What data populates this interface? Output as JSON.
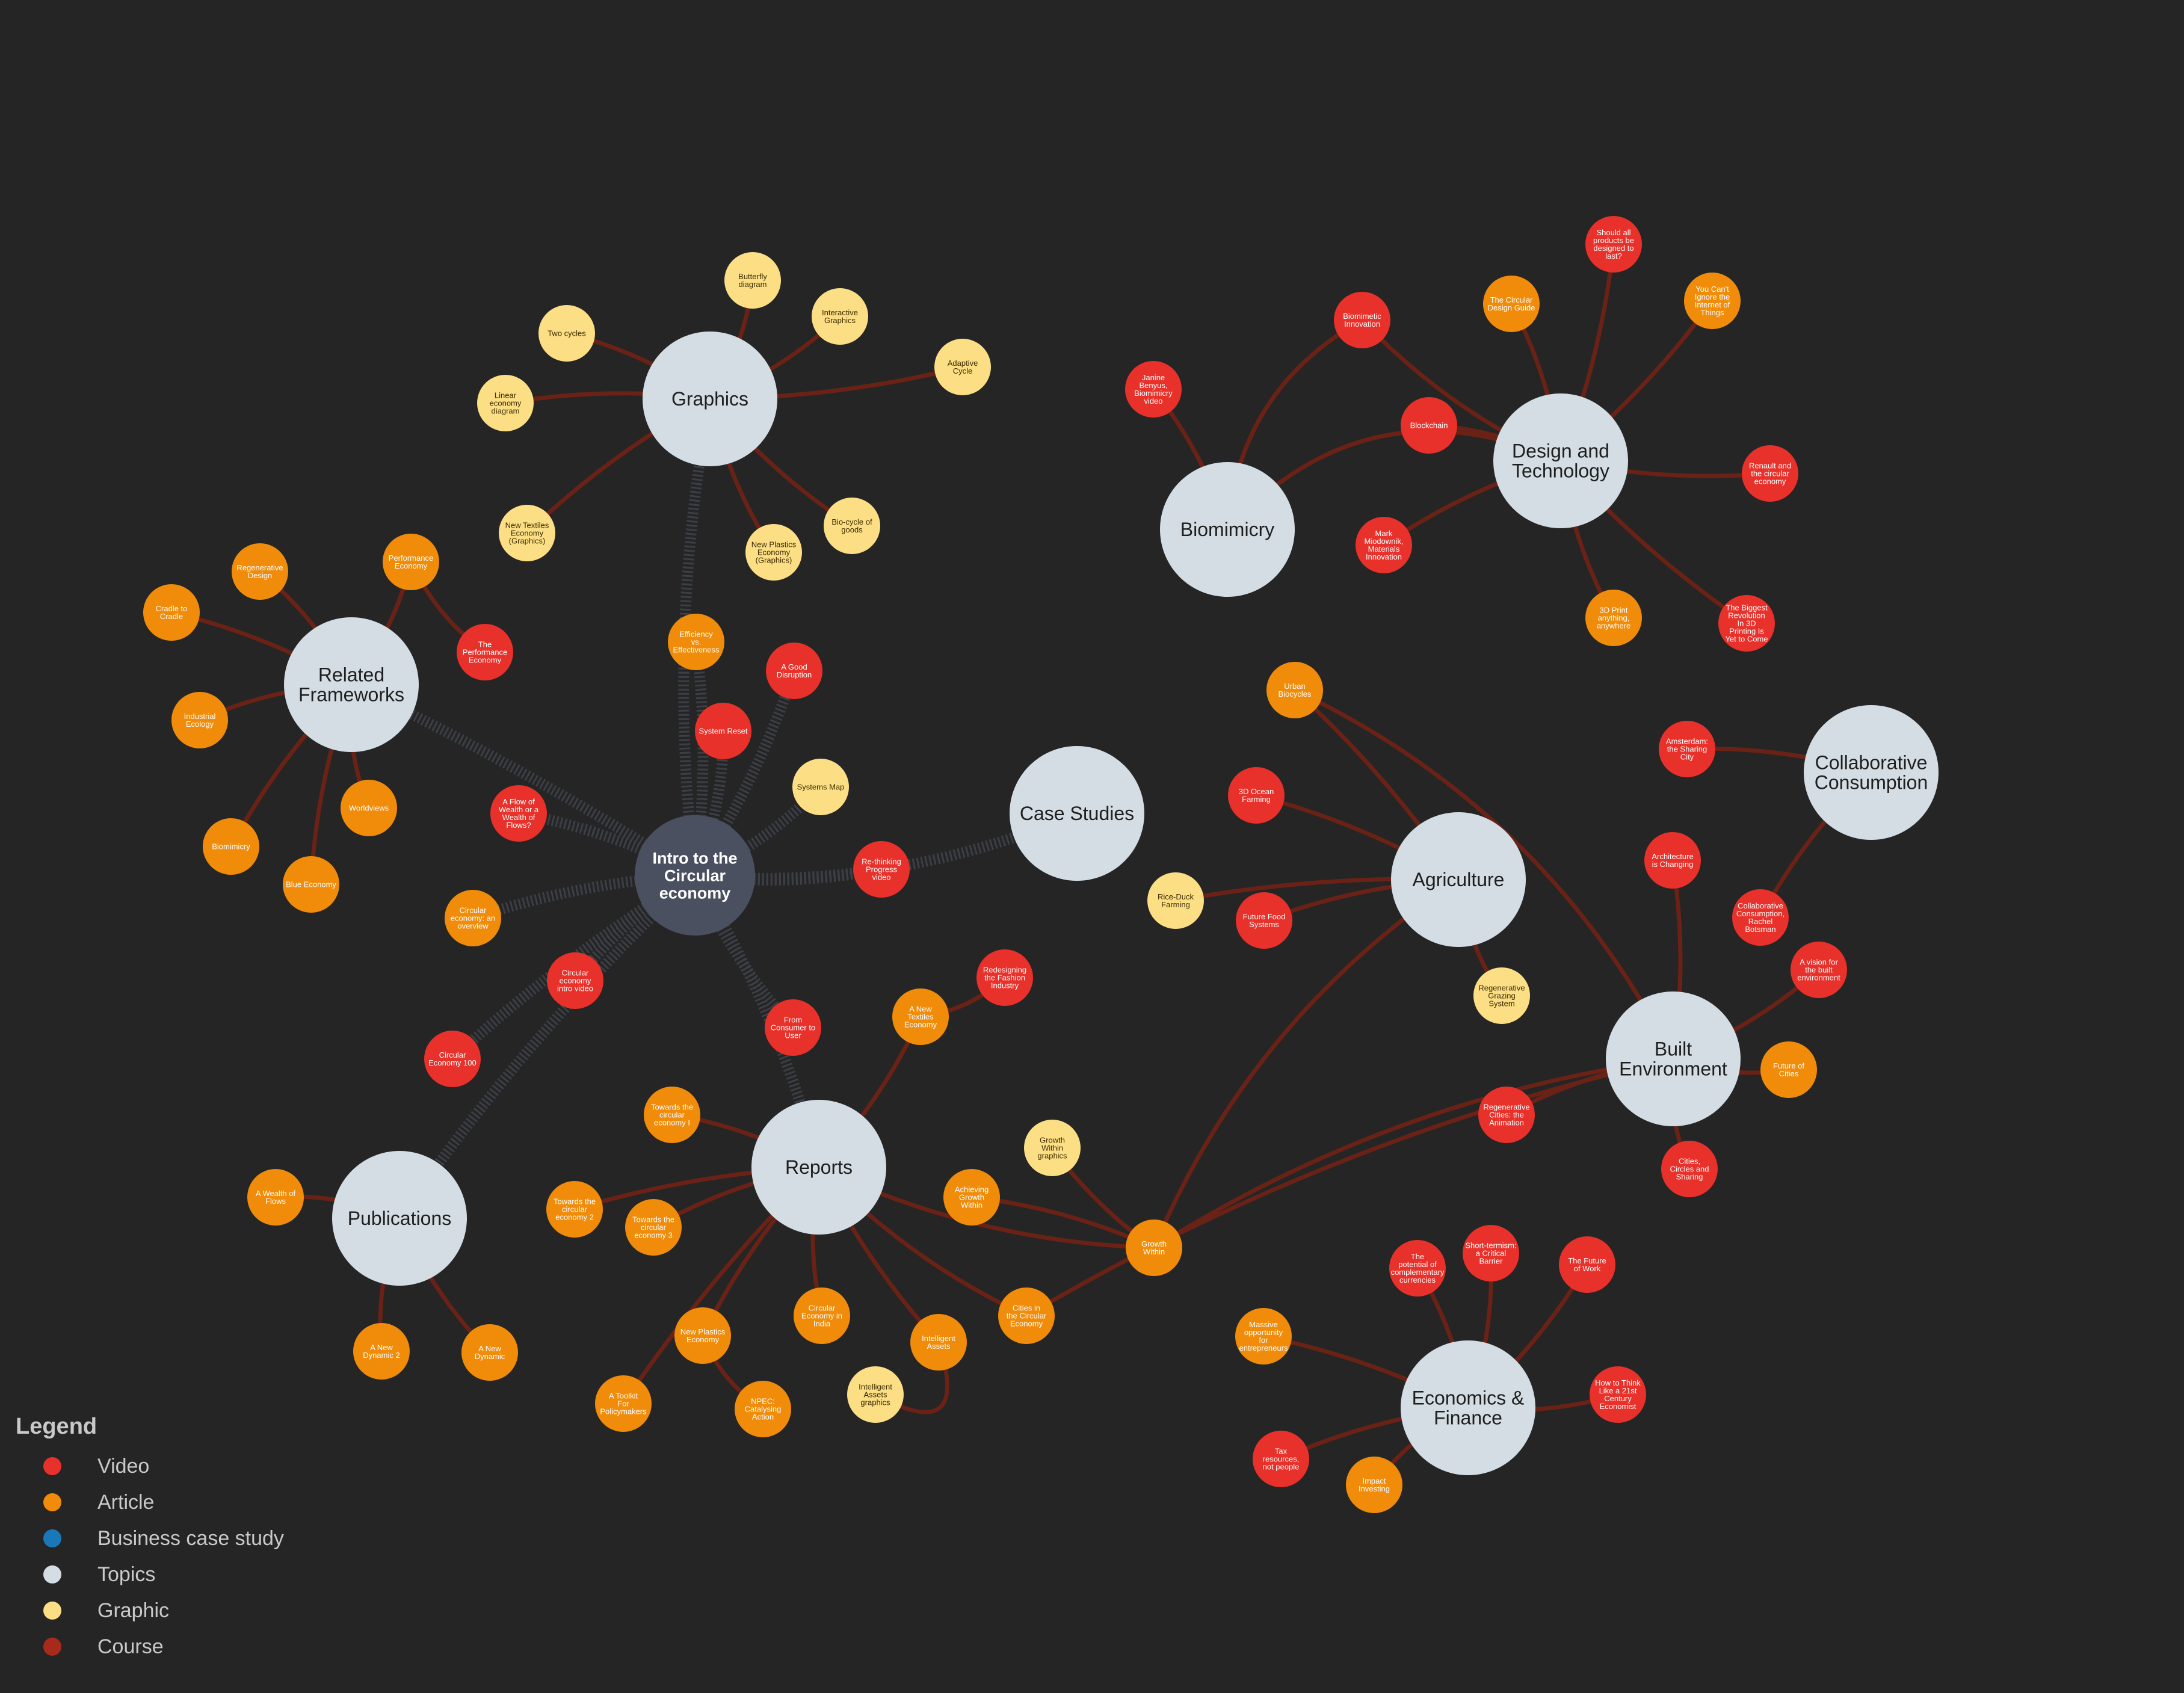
{
  "colors": {
    "background": "#252525",
    "video": "#e8312a",
    "article": "#f08c0a",
    "business_case_study": "#1a78b8",
    "topics": "#d3dde3",
    "graphic": "#fcde84",
    "course": "#a82a1a",
    "hub": "#4a5060",
    "link_course": "#6a2216",
    "link_hub": "#3c3f47"
  },
  "legend": {
    "title": "Legend",
    "items": [
      {
        "label": "Video",
        "type": "video"
      },
      {
        "label": "Article",
        "type": "article"
      },
      {
        "label": "Business case study",
        "type": "business_case_study"
      },
      {
        "label": "Topics",
        "type": "topics"
      },
      {
        "label": "Graphic",
        "type": "graphic"
      },
      {
        "label": "Course",
        "type": "course"
      }
    ]
  },
  "nodes": [
    {
      "id": "intro",
      "label": "Intro to the Circular economy",
      "type": "hub"
    },
    {
      "id": "graphics",
      "label": "Graphics",
      "type": "topics"
    },
    {
      "id": "related",
      "label": "Related Frameworks",
      "type": "topics"
    },
    {
      "id": "case",
      "label": "Case Studies",
      "type": "topics"
    },
    {
      "id": "publications",
      "label": "Publications",
      "type": "topics"
    },
    {
      "id": "reports",
      "label": "Reports",
      "type": "topics"
    },
    {
      "id": "biomimicry",
      "label": "Biomimicry",
      "type": "topics"
    },
    {
      "id": "design",
      "label": "Design and Technology",
      "type": "topics"
    },
    {
      "id": "agriculture",
      "label": "Agriculture",
      "type": "topics"
    },
    {
      "id": "collab",
      "label": "Collaborative Consumption",
      "type": "topics"
    },
    {
      "id": "built",
      "label": "Built Environment",
      "type": "topics"
    },
    {
      "id": "econ",
      "label": "Economics & Finance",
      "type": "topics"
    },
    {
      "id": "butterfly",
      "label": "Butterfly diagram",
      "type": "graphic"
    },
    {
      "id": "twocycles",
      "label": "Two cycles",
      "type": "graphic"
    },
    {
      "id": "interactive",
      "label": "Interactive Graphics",
      "type": "graphic"
    },
    {
      "id": "adaptive",
      "label": "Adaptive Cycle",
      "type": "graphic"
    },
    {
      "id": "linear",
      "label": "Linear economy diagram",
      "type": "graphic"
    },
    {
      "id": "ntg",
      "label": "New Textiles Economy (Graphics)",
      "type": "graphic"
    },
    {
      "id": "npg",
      "label": "New Plastics Economy (Graphics)",
      "type": "graphic"
    },
    {
      "id": "biocycle",
      "label": "Bio-cycle of goods",
      "type": "graphic"
    },
    {
      "id": "regen",
      "label": "Regenerative Design",
      "type": "article"
    },
    {
      "id": "perfecon",
      "label": "Performance Economy",
      "type": "article"
    },
    {
      "id": "cradle",
      "label": "Cradle to Cradle",
      "type": "article"
    },
    {
      "id": "theperf",
      "label": "The Performance Economy",
      "type": "video"
    },
    {
      "id": "indeco",
      "label": "Industrial Ecology",
      "type": "article"
    },
    {
      "id": "worldviews",
      "label": "Worldviews",
      "type": "article"
    },
    {
      "id": "biomim_a",
      "label": "Biomimicry",
      "type": "article"
    },
    {
      "id": "blueeco",
      "label": "Blue Economy",
      "type": "article"
    },
    {
      "id": "efficiency",
      "label": "Efficiency vs. Effectiveness",
      "type": "article"
    },
    {
      "id": "gooddis",
      "label": "A Good Disruption",
      "type": "video"
    },
    {
      "id": "sysreset",
      "label": "System Reset",
      "type": "video"
    },
    {
      "id": "sysmap",
      "label": "Systems Map",
      "type": "graphic"
    },
    {
      "id": "flowwealth",
      "label": "A Flow of Wealth or a Wealth of Flows?",
      "type": "video"
    },
    {
      "id": "rethinking",
      "label": "Re-thinking Progress video",
      "type": "video"
    },
    {
      "id": "ceoverview",
      "label": "Circular economy: an overview",
      "type": "article"
    },
    {
      "id": "ceintro",
      "label": "Circular economy intro video",
      "type": "video"
    },
    {
      "id": "fromcons",
      "label": "From Consumer to User",
      "type": "video"
    },
    {
      "id": "ce100",
      "label": "Circular Economy 100",
      "type": "video"
    },
    {
      "id": "awealth",
      "label": "A Wealth of Flows",
      "type": "article"
    },
    {
      "id": "anewdyn",
      "label": "A New Dynamic 2",
      "type": "article"
    },
    {
      "id": "anewdyn1",
      "label": "A New Dynamic",
      "type": "article"
    },
    {
      "id": "newtext",
      "label": "A New Textiles Economy",
      "type": "article"
    },
    {
      "id": "redesign",
      "label": "Redesigning the Fashion Industry",
      "type": "video"
    },
    {
      "id": "towards1",
      "label": "Towards the circular economy I",
      "type": "article"
    },
    {
      "id": "towards2",
      "label": "Towards the circular economy 2",
      "type": "article"
    },
    {
      "id": "towards3",
      "label": "Towards the circular economy 3",
      "type": "article"
    },
    {
      "id": "achieving",
      "label": "Achieving Growth Within",
      "type": "article"
    },
    {
      "id": "gwgraphics",
      "label": "Growth Within graphics",
      "type": "graphic"
    },
    {
      "id": "growthwithin",
      "label": "Growth Within",
      "type": "article"
    },
    {
      "id": "newplastics",
      "label": "New Plastics Economy",
      "type": "article"
    },
    {
      "id": "ceindia",
      "label": "Circular Economy in India",
      "type": "article"
    },
    {
      "id": "intassets",
      "label": "Intelligent Assets",
      "type": "article"
    },
    {
      "id": "citiesce",
      "label": "Cities in the Circular Economy",
      "type": "article"
    },
    {
      "id": "toolkit",
      "label": "A Toolkit For Policymakers",
      "type": "article"
    },
    {
      "id": "npec",
      "label": "NPEC: Catalysing Action",
      "type": "article"
    },
    {
      "id": "iagraphics",
      "label": "Intelligent Assets graphics",
      "type": "graphic"
    },
    {
      "id": "biomiminn",
      "label": "Biomimetic Innovation",
      "type": "video"
    },
    {
      "id": "janine",
      "label": "Janine Benyus, Biomimicry video",
      "type": "video"
    },
    {
      "id": "blockchain",
      "label": "Blockchain",
      "type": "video"
    },
    {
      "id": "markm",
      "label": "Mark Miodownik, Materials Innovation",
      "type": "video"
    },
    {
      "id": "circdesign",
      "label": "The Circular Design Guide",
      "type": "article"
    },
    {
      "id": "shouldall",
      "label": "Should all products be designed to last?",
      "type": "video"
    },
    {
      "id": "ignore",
      "label": "You Can't Ignore the Internet of Things",
      "type": "article"
    },
    {
      "id": "renault",
      "label": "Renault and the circular economy",
      "type": "video"
    },
    {
      "id": "print3d",
      "label": "3D Print anything, anywhere",
      "type": "article"
    },
    {
      "id": "biggest",
      "label": "The Biggest Revolution In 3D Printing Is Yet to Come",
      "type": "video"
    },
    {
      "id": "urbanbio",
      "label": "Urban Biocycles",
      "type": "article"
    },
    {
      "id": "ocean3d",
      "label": "3D Ocean Farming",
      "type": "video"
    },
    {
      "id": "riceduck",
      "label": "Rice-Duck Farming",
      "type": "graphic"
    },
    {
      "id": "futurefood",
      "label": "Future Food Systems",
      "type": "video"
    },
    {
      "id": "regengraz",
      "label": "Regenerative Grazing System",
      "type": "graphic"
    },
    {
      "id": "amsterdam",
      "label": "Amsterdam: the Sharing City",
      "type": "video"
    },
    {
      "id": "collabrachel",
      "label": "Collaborative Consumption, Rachel Botsman",
      "type": "video"
    },
    {
      "id": "archchanging",
      "label": "Architecture is Changing",
      "type": "video"
    },
    {
      "id": "avision",
      "label": "A vision for the built environment",
      "type": "video"
    },
    {
      "id": "futcities",
      "label": "Future of Cities",
      "type": "article"
    },
    {
      "id": "regencities",
      "label": "Regenerative Cities: the Animation",
      "type": "video"
    },
    {
      "id": "citiescircles",
      "label": "Cities, Circles and Sharing",
      "type": "video"
    },
    {
      "id": "potential",
      "label": "The potential of complementary currencies",
      "type": "video"
    },
    {
      "id": "shortterm",
      "label": "Short-termism: a Critical Barrier",
      "type": "video"
    },
    {
      "id": "futurework",
      "label": "The Future of Work",
      "type": "video"
    },
    {
      "id": "massive",
      "label": "Massive opportunity for entrepreneurs",
      "type": "article"
    },
    {
      "id": "howtothink",
      "label": "How to Think Like a 21st Century Economist",
      "type": "video"
    },
    {
      "id": "taxres",
      "label": "Tax resources, not people",
      "type": "video"
    },
    {
      "id": "impact",
      "label": "Impact Investing",
      "type": "article"
    }
  ],
  "links": [
    {
      "from": "intro",
      "to": "graphics",
      "kind": "hub"
    },
    {
      "from": "intro",
      "to": "related",
      "kind": "hub"
    },
    {
      "from": "intro",
      "to": "case",
      "kind": "hub"
    },
    {
      "from": "intro",
      "to": "publications",
      "kind": "hub"
    },
    {
      "from": "intro",
      "to": "reports",
      "kind": "hub"
    },
    {
      "from": "intro",
      "to": "efficiency",
      "kind": "hub"
    },
    {
      "from": "intro",
      "to": "gooddis",
      "kind": "hub"
    },
    {
      "from": "intro",
      "to": "sysreset",
      "kind": "hub"
    },
    {
      "from": "intro",
      "to": "sysmap",
      "kind": "hub"
    },
    {
      "from": "intro",
      "to": "flowwealth",
      "kind": "hub"
    },
    {
      "from": "intro",
      "to": "rethinking",
      "kind": "hub"
    },
    {
      "from": "intro",
      "to": "ceoverview",
      "kind": "hub"
    },
    {
      "from": "intro",
      "to": "ceintro",
      "kind": "hub"
    },
    {
      "from": "intro",
      "to": "fromcons",
      "kind": "hub"
    },
    {
      "from": "intro",
      "to": "ce100",
      "kind": "hub"
    },
    {
      "from": "graphics",
      "to": "butterfly",
      "kind": "course"
    },
    {
      "from": "graphics",
      "to": "twocycles",
      "kind": "course"
    },
    {
      "from": "graphics",
      "to": "interactive",
      "kind": "course"
    },
    {
      "from": "graphics",
      "to": "adaptive",
      "kind": "course"
    },
    {
      "from": "graphics",
      "to": "linear",
      "kind": "course"
    },
    {
      "from": "graphics",
      "to": "ntg",
      "kind": "course"
    },
    {
      "from": "graphics",
      "to": "npg",
      "kind": "course"
    },
    {
      "from": "graphics",
      "to": "biocycle",
      "kind": "course"
    },
    {
      "from": "related",
      "to": "regen",
      "kind": "course"
    },
    {
      "from": "related",
      "to": "perfecon",
      "kind": "course"
    },
    {
      "from": "related",
      "to": "cradle",
      "kind": "course"
    },
    {
      "from": "perfecon",
      "to": "theperf",
      "kind": "course"
    },
    {
      "from": "related",
      "to": "indeco",
      "kind": "course"
    },
    {
      "from": "related",
      "to": "worldviews",
      "kind": "course"
    },
    {
      "from": "related",
      "to": "biomim_a",
      "kind": "course"
    },
    {
      "from": "related",
      "to": "blueeco",
      "kind": "course"
    },
    {
      "from": "publications",
      "to": "awealth",
      "kind": "course"
    },
    {
      "from": "publications",
      "to": "anewdyn",
      "kind": "course"
    },
    {
      "from": "publications",
      "to": "anewdyn1",
      "kind": "course"
    },
    {
      "from": "reports",
      "to": "newtext",
      "kind": "course"
    },
    {
      "from": "newtext",
      "to": "redesign",
      "kind": "course"
    },
    {
      "from": "reports",
      "to": "towards1",
      "kind": "course"
    },
    {
      "from": "reports",
      "to": "towards2",
      "kind": "course"
    },
    {
      "from": "reports",
      "to": "towards3",
      "kind": "course"
    },
    {
      "from": "reports",
      "to": "growthwithin",
      "kind": "course"
    },
    {
      "from": "reports",
      "to": "newplastics",
      "kind": "course"
    },
    {
      "from": "newplastics",
      "to": "npec",
      "kind": "course"
    },
    {
      "from": "reports",
      "to": "ceindia",
      "kind": "course"
    },
    {
      "from": "reports",
      "to": "intassets",
      "kind": "course"
    },
    {
      "from": "intassets",
      "to": "iagraphics",
      "kind": "course"
    },
    {
      "from": "reports",
      "to": "citiesce",
      "kind": "course"
    },
    {
      "from": "reports",
      "to": "toolkit",
      "kind": "course"
    },
    {
      "from": "growthwithin",
      "to": "achieving",
      "kind": "course"
    },
    {
      "from": "growthwithin",
      "to": "gwgraphics",
      "kind": "course"
    },
    {
      "from": "growthwithin",
      "to": "agriculture",
      "kind": "course"
    },
    {
      "from": "growthwithin",
      "to": "built",
      "kind": "course"
    },
    {
      "from": "citiesce",
      "to": "built",
      "kind": "course"
    },
    {
      "from": "biomimicry",
      "to": "biomiminn",
      "kind": "course"
    },
    {
      "from": "biomimicry",
      "to": "janine",
      "kind": "course"
    },
    {
      "from": "biomimicry",
      "to": "design",
      "kind": "course"
    },
    {
      "from": "design",
      "to": "biomiminn",
      "kind": "course"
    },
    {
      "from": "design",
      "to": "blockchain",
      "kind": "course"
    },
    {
      "from": "design",
      "to": "markm",
      "kind": "course"
    },
    {
      "from": "design",
      "to": "circdesign",
      "kind": "course"
    },
    {
      "from": "design",
      "to": "shouldall",
      "kind": "course"
    },
    {
      "from": "design",
      "to": "ignore",
      "kind": "course"
    },
    {
      "from": "design",
      "to": "renault",
      "kind": "course"
    },
    {
      "from": "design",
      "to": "print3d",
      "kind": "course"
    },
    {
      "from": "design",
      "to": "biggest",
      "kind": "course"
    },
    {
      "from": "agriculture",
      "to": "urbanbio",
      "kind": "course"
    },
    {
      "from": "agriculture",
      "to": "ocean3d",
      "kind": "course"
    },
    {
      "from": "agriculture",
      "to": "riceduck",
      "kind": "course"
    },
    {
      "from": "agriculture",
      "to": "futurefood",
      "kind": "course"
    },
    {
      "from": "agriculture",
      "to": "regengraz",
      "kind": "course"
    },
    {
      "from": "urbanbio",
      "to": "built",
      "kind": "course"
    },
    {
      "from": "collab",
      "to": "amsterdam",
      "kind": "course"
    },
    {
      "from": "collab",
      "to": "collabrachel",
      "kind": "course"
    },
    {
      "from": "built",
      "to": "archchanging",
      "kind": "course"
    },
    {
      "from": "built",
      "to": "avision",
      "kind": "course"
    },
    {
      "from": "built",
      "to": "futcities",
      "kind": "course"
    },
    {
      "from": "built",
      "to": "regencities",
      "kind": "course"
    },
    {
      "from": "built",
      "to": "citiescircles",
      "kind": "course"
    },
    {
      "from": "econ",
      "to": "potential",
      "kind": "course"
    },
    {
      "from": "econ",
      "to": "shortterm",
      "kind": "course"
    },
    {
      "from": "econ",
      "to": "futurework",
      "kind": "course"
    },
    {
      "from": "econ",
      "to": "massive",
      "kind": "course"
    },
    {
      "from": "econ",
      "to": "howtothink",
      "kind": "course"
    },
    {
      "from": "econ",
      "to": "taxres",
      "kind": "course"
    },
    {
      "from": "econ",
      "to": "impact",
      "kind": "course"
    }
  ]
}
